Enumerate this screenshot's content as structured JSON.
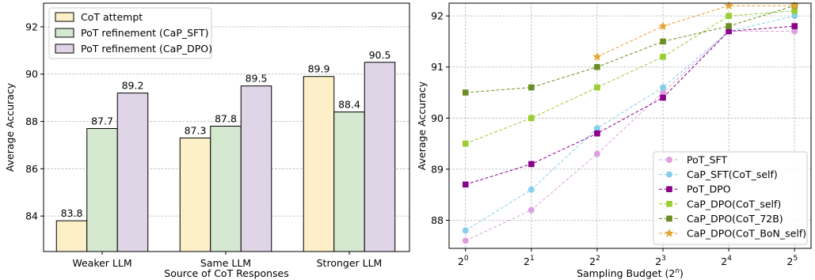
{
  "chart_data": [
    {
      "type": "bar",
      "xlabel": "Source of CoT Responses",
      "ylabel": "Average Accuracy",
      "categories": [
        "Weaker LLM",
        "Same LLM",
        "Stronger LLM"
      ],
      "ylim": [
        82.5,
        93.0
      ],
      "yticks": [
        "84",
        "86",
        "88",
        "90",
        "92"
      ],
      "ytick_values": [
        84,
        86,
        88,
        90,
        92
      ],
      "grid": true,
      "legend_position": "top-left",
      "series": [
        {
          "name": "CoT attempt",
          "color": "#fdf0c9",
          "values": [
            83.8,
            87.3,
            89.9
          ],
          "labels": [
            "83.8",
            "87.3",
            "89.9"
          ]
        },
        {
          "name": "PoT refinement (CaP_SFT)",
          "color": "#d5e9d1",
          "values": [
            87.7,
            87.8,
            88.4
          ],
          "labels": [
            "87.7",
            "87.8",
            "88.4"
          ]
        },
        {
          "name": "PoT refinement (CaP_DPO)",
          "color": "#e0d4e7",
          "values": [
            89.2,
            89.5,
            90.5
          ],
          "labels": [
            "89.2",
            "89.5",
            "90.5"
          ]
        }
      ]
    },
    {
      "type": "line",
      "xlabel": "Sampling Budget (2",
      "xlabel_sup": "n",
      "xlabel_end": ")",
      "ylabel": "Average Accuracy",
      "x": [
        0,
        1,
        2,
        3,
        4,
        5
      ],
      "xtick_base": "2",
      "xtick_exp": [
        "0",
        "1",
        "2",
        "3",
        "4",
        "5"
      ],
      "xlim": [
        -0.25,
        5.25
      ],
      "ylim": [
        87.45,
        92.25
      ],
      "yticks": [
        "88",
        "89",
        "90",
        "91",
        "92"
      ],
      "ytick_values": [
        88,
        89,
        90,
        91,
        92
      ],
      "grid": true,
      "legend_position": "bottom-right",
      "series": [
        {
          "name": "PoT_SFT",
          "color": "#dda0dd",
          "marker": "circle",
          "x": [
            0,
            1,
            2,
            3,
            4,
            5
          ],
          "values": [
            87.6,
            88.2,
            89.3,
            90.5,
            91.7,
            91.7
          ]
        },
        {
          "name": "CaP_SFT(CoT_self)",
          "color": "#87ceeb",
          "marker": "circle",
          "x": [
            0,
            1,
            2,
            3,
            4,
            5
          ],
          "values": [
            87.8,
            88.6,
            89.8,
            90.6,
            91.7,
            92.0
          ]
        },
        {
          "name": "PoT_DPO",
          "color": "#8b008b",
          "marker": "square",
          "x": [
            0,
            1,
            2,
            3,
            4,
            5
          ],
          "values": [
            88.7,
            89.1,
            89.7,
            90.4,
            91.7,
            91.8
          ]
        },
        {
          "name": "CaP_DPO(CoT_self)",
          "color": "#9acd32",
          "marker": "square",
          "x": [
            0,
            1,
            2,
            3,
            4,
            5
          ],
          "values": [
            89.5,
            90.0,
            90.6,
            91.2,
            92.0,
            92.1
          ]
        },
        {
          "name": "CaP_DPO(CoT_72B)",
          "color": "#6b8e23",
          "marker": "square",
          "x": [
            0,
            1,
            2,
            3,
            4,
            5
          ],
          "values": [
            90.5,
            90.6,
            91.0,
            91.5,
            91.8,
            92.2
          ]
        },
        {
          "name": "CaP_DPO(CoT_BoN_self)",
          "color": "#e3a531",
          "marker": "star",
          "x": [
            2,
            3,
            4,
            5
          ],
          "values": [
            91.2,
            91.8,
            92.2,
            92.2
          ]
        }
      ]
    }
  ]
}
